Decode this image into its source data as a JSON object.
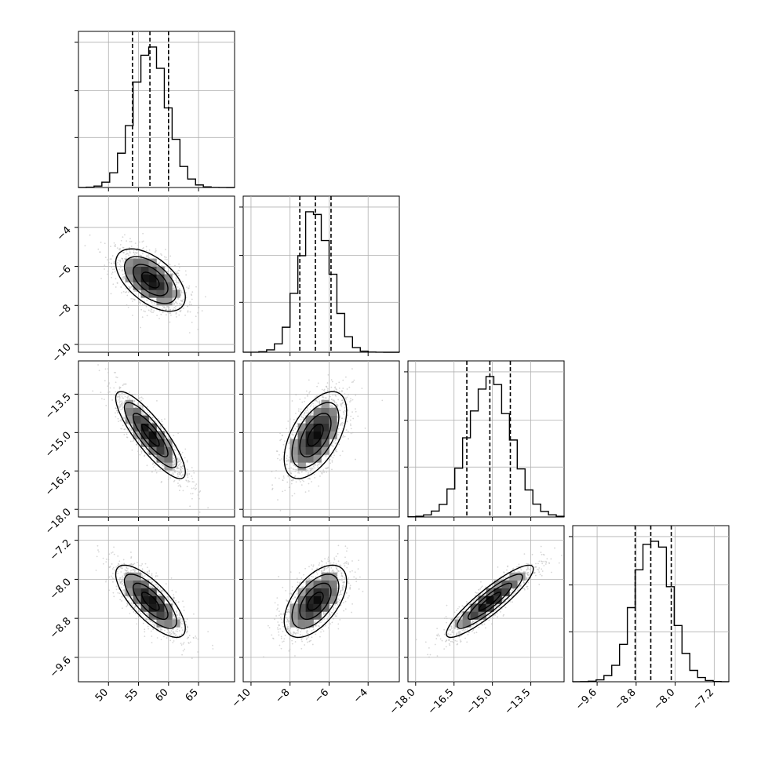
{
  "chart_data": {
    "type": "scatter",
    "kind": "corner-plot",
    "parameters": [
      {
        "range": [
          45,
          71
        ],
        "ticks": [
          "50",
          "55",
          "60",
          "65"
        ],
        "tick_values": [
          50,
          55,
          60,
          65
        ],
        "quantiles": [
          54.0,
          56.9,
          60.0
        ],
        "mean": 57.0,
        "sd": 2.9
      },
      {
        "range": [
          -10.4,
          -2.4
        ],
        "ticks": [
          "−10",
          "−8",
          "−6",
          "−4"
        ],
        "tick_values": [
          -10,
          -8,
          -6,
          -4
        ],
        "quantiles": [
          -7.5,
          -6.7,
          -5.9
        ],
        "mean": -6.7,
        "sd": 0.8
      },
      {
        "range": [
          -18.3,
          -12.2
        ],
        "ticks": [
          "−18.0",
          "−16.5",
          "−15.0",
          "−13.5"
        ],
        "tick_values": [
          -18,
          -16.5,
          -15,
          -13.5
        ],
        "quantiles": [
          -16.0,
          -15.1,
          -14.3
        ],
        "mean": -15.1,
        "sd": 0.85
      },
      {
        "range": [
          -10.1,
          -6.9
        ],
        "ticks": [
          "−9.6",
          "−8.8",
          "−8.0",
          "−7.2"
        ],
        "tick_values": [
          -9.6,
          -8.8,
          -8.0,
          -7.2
        ],
        "quantiles": [
          -8.82,
          -8.5,
          -8.08
        ],
        "mean": -8.45,
        "sd": 0.37
      }
    ],
    "correlations": [
      [
        1.0,
        -0.55,
        -0.85,
        -0.75
      ],
      [
        -0.55,
        1.0,
        0.55,
        0.55
      ],
      [
        -0.85,
        0.55,
        1.0,
        0.9
      ],
      [
        -0.75,
        0.55,
        0.9,
        1.0
      ]
    ],
    "histogram_bins": 20,
    "contour_levels_sigma": [
      0.5,
      1.0,
      1.5,
      2.0
    ],
    "grid": true,
    "xlabel": "",
    "ylabel": "",
    "title": ""
  },
  "colors": {
    "line": "#000000",
    "grid": "#b0b0b0",
    "points": "#bdbdbd",
    "background": "#ffffff"
  }
}
